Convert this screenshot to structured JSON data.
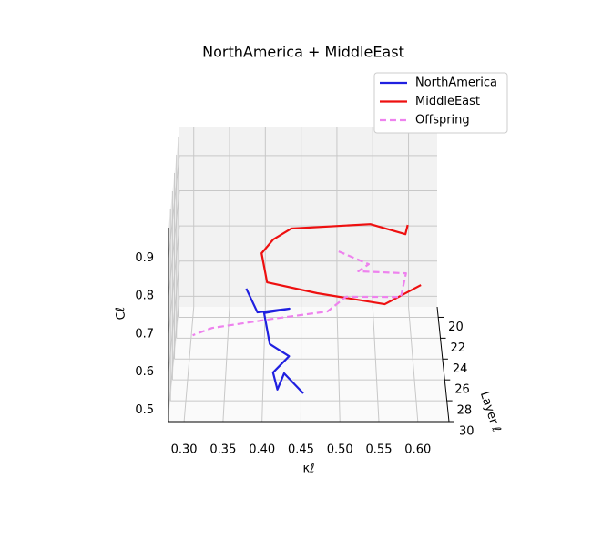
{
  "chart_data": {
    "type": "line3d",
    "title": "NorthAmerica + MiddleEast",
    "xlabel": "κℓ",
    "ylabel": "Layer ℓ",
    "zlabel": "Cℓ",
    "xlim": [
      0.28,
      0.64
    ],
    "ylim": [
      19,
      30
    ],
    "zlim": [
      0.47,
      0.98
    ],
    "xticks": [
      {
        "value": 0.3,
        "label": "0.30"
      },
      {
        "value": 0.35,
        "label": "0.35"
      },
      {
        "value": 0.4,
        "label": "0.40"
      },
      {
        "value": 0.45,
        "label": "0.45"
      },
      {
        "value": 0.5,
        "label": "0.50"
      },
      {
        "value": 0.55,
        "label": "0.55"
      },
      {
        "value": 0.6,
        "label": "0.60"
      }
    ],
    "yticks": [
      20,
      22,
      24,
      26,
      28,
      30
    ],
    "zticks": [
      0.5,
      0.6,
      0.7,
      0.8,
      0.9
    ],
    "grid": true,
    "legend": "upper right",
    "series": [
      {
        "name": "NorthAmerica",
        "color": "#2020e0",
        "dashed": false,
        "x": [
          0.374,
          0.39,
          0.434,
          0.4,
          0.408,
          0.434,
          0.413,
          0.419,
          0.428,
          0.453
        ],
        "y": [
          20,
          21,
          22,
          23,
          24,
          25,
          26,
          27,
          28,
          29
        ],
        "z": [
          0.551,
          0.513,
          0.552,
          0.568,
          0.511,
          0.506,
          0.49,
          0.472,
          0.543,
          0.517
        ]
      },
      {
        "name": "MiddleEast",
        "color": "#ee1010",
        "dashed": false,
        "x": [
          0.616,
          0.565,
          0.472,
          0.404,
          0.397,
          0.413,
          0.437,
          0.541,
          0.586,
          0.588
        ],
        "y": [
          20,
          21,
          22,
          23,
          24,
          25,
          26,
          27,
          28,
          29
        ],
        "z": [
          0.561,
          0.536,
          0.595,
          0.653,
          0.76,
          0.824,
          0.879,
          0.916,
          0.914,
          0.963
        ]
      },
      {
        "name": "Offspring",
        "color": "#ee82ee",
        "dashed": true,
        "x": [
          0.502,
          0.543,
          0.528,
          0.592,
          0.584,
          0.51,
          0.485,
          0.413,
          0.334,
          0.31
        ],
        "y": [
          20,
          21,
          22,
          23,
          24,
          25,
          26,
          27,
          28,
          29
        ],
        "z": [
          0.656,
          0.648,
          0.656,
          0.678,
          0.64,
          0.668,
          0.655,
          0.662,
          0.664,
          0.671
        ]
      }
    ]
  }
}
